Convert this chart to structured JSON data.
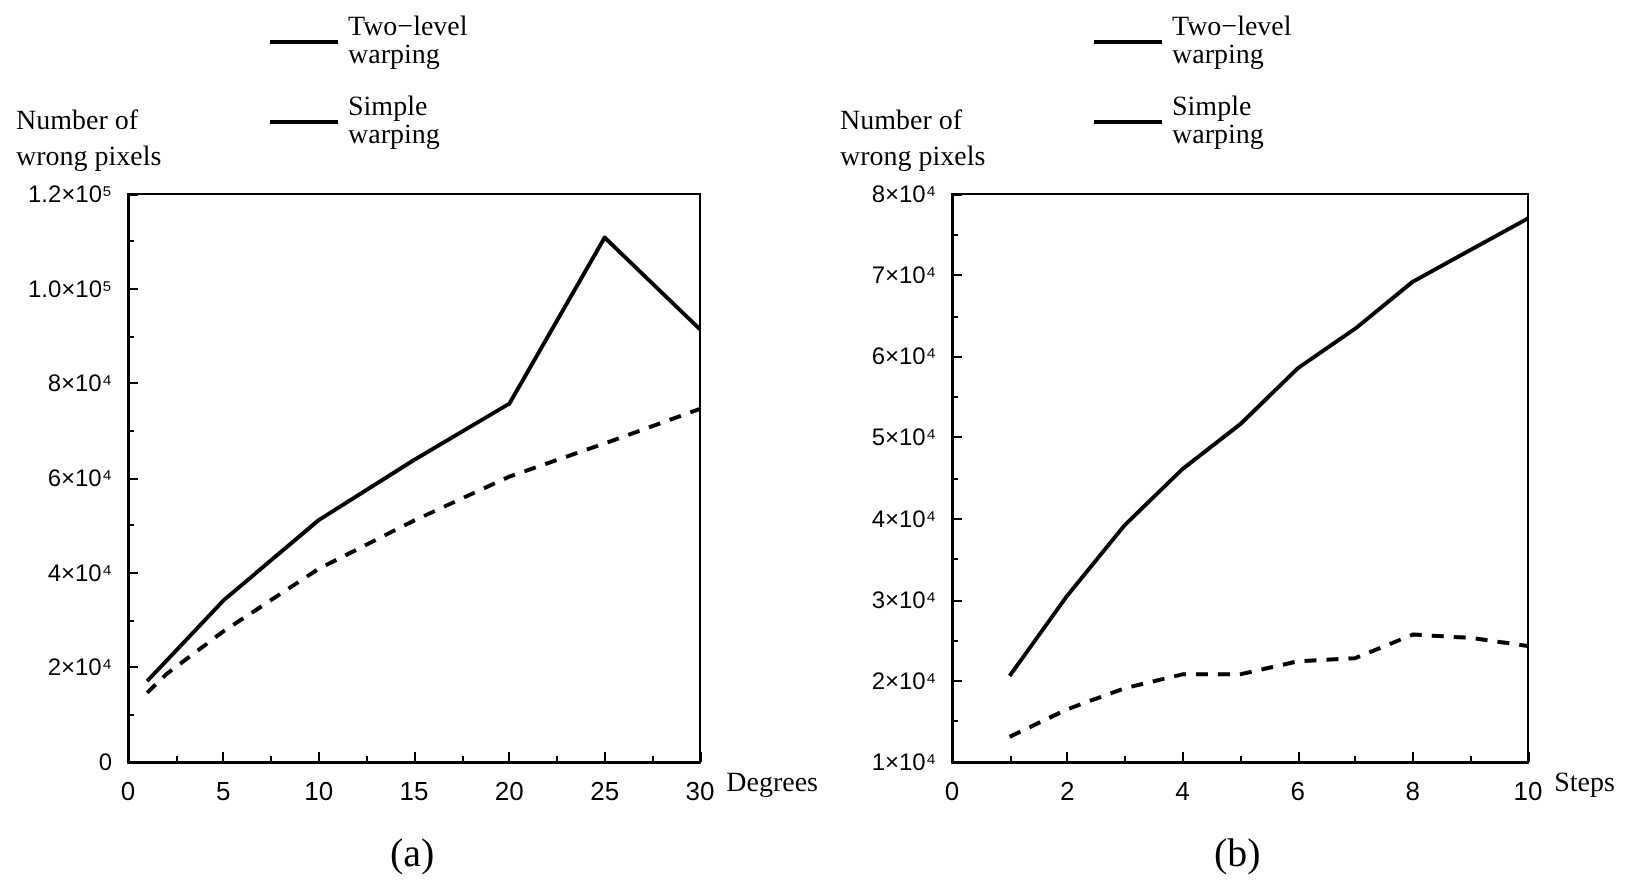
{
  "chart_data": [
    {
      "type": "line",
      "title": "(a)",
      "xlabel": "Degrees",
      "ylabel": "Number of wrong pixels",
      "x": [
        1,
        2,
        5,
        10,
        15,
        20,
        25,
        30
      ],
      "series": [
        {
          "name": "Two−level warping",
          "color": "#000000",
          "line_style": "dashed",
          "values": [
            14600,
            18500,
            27600,
            40800,
            51000,
            60300,
            67300,
            74600
          ]
        },
        {
          "name": "Simple warping",
          "color": "#000000",
          "line_style": "solid",
          "values": [
            17100,
            21300,
            34100,
            51100,
            63800,
            75700,
            110800,
            91400
          ]
        }
      ],
      "xlim": [
        0,
        30
      ],
      "xticks": [
        0,
        5,
        10,
        15,
        20,
        25,
        30
      ],
      "ylim": [
        0,
        120000
      ],
      "yticks": [
        0,
        {
          "value": 20000,
          "label": "2×10⁴"
        },
        {
          "value": 40000,
          "label": "4×10⁴"
        },
        {
          "value": 60000,
          "label": "6×10⁴"
        },
        {
          "value": 80000,
          "label": "8×10⁴"
        },
        {
          "value": 100000,
          "label": "1.0×10⁵"
        },
        {
          "value": 120000,
          "label": "1.2×10⁵"
        }
      ],
      "grid": false,
      "legend": "top",
      "marker": "none"
    },
    {
      "type": "line",
      "title": "(b)",
      "xlabel": "Steps",
      "ylabel": "Number of wrong pixels",
      "x": [
        1,
        2,
        3,
        4,
        5,
        6,
        7,
        8,
        9,
        10
      ],
      "series": [
        {
          "name": "Two−level warping",
          "color": "#000000",
          "line_style": "dashed",
          "values": [
            13100,
            16500,
            19100,
            20800,
            20800,
            22400,
            22800,
            25700,
            25300,
            24300
          ]
        },
        {
          "name": "Simple warping",
          "color": "#000000",
          "line_style": "solid",
          "values": [
            20600,
            30500,
            39200,
            46100,
            51600,
            58500,
            63400,
            69200,
            73100,
            77000
          ]
        }
      ],
      "xlim": [
        0,
        10
      ],
      "xticks": [
        0,
        2,
        4,
        6,
        8,
        10
      ],
      "ylim": [
        10000,
        80000
      ],
      "yticks": [
        {
          "value": 10000,
          "label": "1×10⁴"
        },
        {
          "value": 20000,
          "label": "2×10⁴"
        },
        {
          "value": 30000,
          "label": "3×10⁴"
        },
        {
          "value": 40000,
          "label": "4×10⁴"
        },
        {
          "value": 50000,
          "label": "5×10⁴"
        },
        {
          "value": 60000,
          "label": "6×10⁴"
        },
        {
          "value": 70000,
          "label": "7×10⁴"
        },
        {
          "value": 80000,
          "label": "8×10⁴"
        }
      ],
      "grid": false,
      "legend": "top",
      "marker": "none"
    }
  ]
}
